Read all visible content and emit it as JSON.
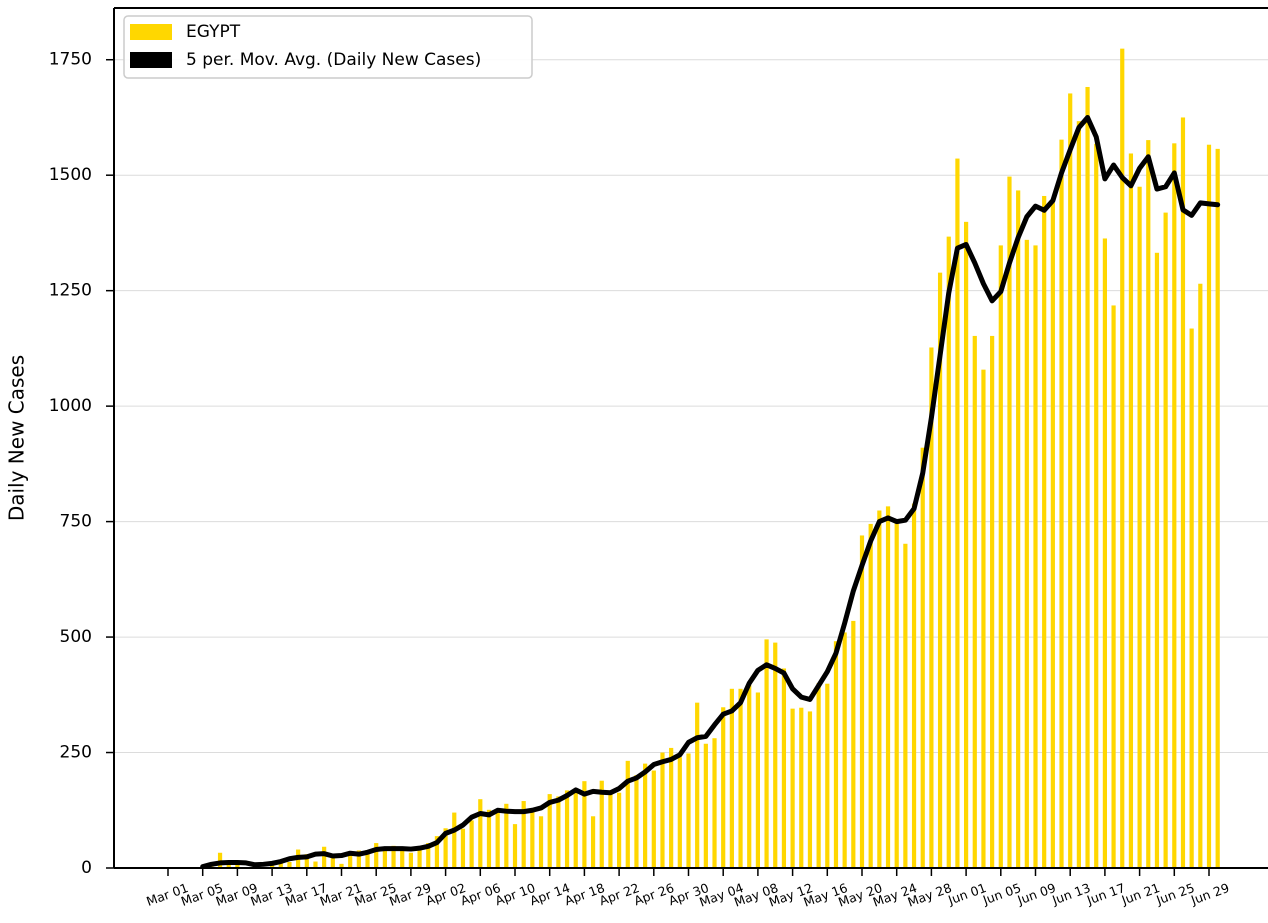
{
  "chart_data": {
    "type": "bar",
    "ylabel": "Daily New Cases",
    "categories": [
      "Mar 01",
      null,
      null,
      null,
      "Mar 05",
      null,
      null,
      null,
      "Mar 09",
      null,
      null,
      null,
      "Mar 13",
      null,
      null,
      null,
      "Mar 17",
      null,
      null,
      null,
      "Mar 21",
      null,
      null,
      null,
      "Mar 25",
      null,
      null,
      null,
      "Mar 29",
      null,
      null,
      null,
      "Apr 02",
      null,
      null,
      null,
      "Apr 06",
      null,
      null,
      null,
      "Apr 10",
      null,
      null,
      null,
      "Apr 14",
      null,
      null,
      null,
      "Apr 18",
      null,
      null,
      null,
      "Apr 22",
      null,
      null,
      null,
      "Apr 26",
      null,
      null,
      null,
      "Apr 30",
      null,
      null,
      null,
      "May 04",
      null,
      null,
      null,
      "May 08",
      null,
      null,
      null,
      "May 12",
      null,
      null,
      null,
      "May 16",
      null,
      null,
      null,
      "May 20",
      null,
      null,
      null,
      "May 24",
      null,
      null,
      null,
      "May 28",
      null,
      null,
      null,
      "Jun 01",
      null,
      null,
      null,
      "Jun 05",
      null,
      null,
      null,
      "Jun 09",
      null,
      null,
      null,
      "Jun 13",
      null,
      null,
      null,
      "Jun 17",
      null,
      null,
      null,
      "Jun 21",
      null,
      null,
      null,
      "Jun 25",
      null,
      null,
      null,
      "Jun 29",
      null
    ],
    "series": [
      {
        "name": "EGYPT",
        "type": "bar",
        "color": "#ffd700",
        "values": [
          0,
          0,
          0,
          0,
          3,
          3,
          33,
          12,
          7,
          1,
          4,
          0,
          8,
          13,
          13,
          40,
          30,
          14,
          46,
          30,
          9,
          29,
          38,
          39,
          54,
          40,
          48,
          41,
          33,
          47,
          54,
          69,
          86,
          120,
          85,
          103,
          149,
          126,
          128,
          139,
          95,
          145,
          125,
          112,
          160,
          155,
          168,
          171,
          188,
          112,
          189,
          160,
          163,
          232,
          201,
          226,
          211,
          250,
          260,
          240,
          248,
          358,
          269,
          281,
          348,
          388,
          388,
          396,
          380,
          495,
          488,
          432,
          345,
          347,
          339,
          400,
          399,
          491,
          510,
          535,
          720,
          745,
          774,
          783,
          752,
          702,
          789,
          910,
          1127,
          1289,
          1367,
          1536,
          1399,
          1152,
          1079,
          1152,
          1348,
          1497,
          1467,
          1360,
          1348,
          1455,
          1441,
          1577,
          1677,
          1617,
          1691,
          1568,
          1363,
          1218,
          1774,
          1547,
          1475,
          1576,
          1332,
          1419,
          1569,
          1625,
          1168,
          1265,
          1566,
          1557
        ]
      },
      {
        "name": "5 per. Mov. Avg. (Daily New Cases)",
        "type": "line",
        "color": "#000000",
        "values": [
          null,
          null,
          null,
          null,
          3,
          8,
          11,
          12,
          12,
          11,
          7,
          8,
          10,
          14,
          20,
          23,
          24,
          30,
          31,
          26,
          27,
          32,
          30,
          34,
          40,
          42,
          42,
          42,
          41,
          43,
          47,
          55,
          75,
          82,
          93,
          110,
          118,
          115,
          125,
          123,
          122,
          122,
          125,
          130,
          142,
          147,
          157,
          169,
          160,
          166,
          164,
          163,
          172,
          188,
          195,
          208,
          224,
          230,
          235,
          245,
          272,
          282,
          285,
          310,
          333,
          340,
          358,
          400,
          428,
          440,
          432,
          422,
          388,
          370,
          365,
          395,
          425,
          465,
          530,
          600,
          655,
          708,
          750,
          758,
          750,
          753,
          778,
          855,
          975,
          1110,
          1245,
          1342,
          1350,
          1310,
          1265,
          1228,
          1248,
          1310,
          1365,
          1410,
          1433,
          1424,
          1445,
          1505,
          1555,
          1603,
          1625,
          1583,
          1492,
          1522,
          1495,
          1477,
          1515,
          1540,
          1470,
          1475,
          1505,
          1425,
          1413,
          1440,
          1438,
          1436
        ]
      }
    ],
    "ylim": [
      0,
      1862
    ],
    "yticks": [
      0,
      250,
      500,
      750,
      1000,
      1250,
      1500,
      1750
    ],
    "grid": true,
    "legend": "upper left"
  }
}
